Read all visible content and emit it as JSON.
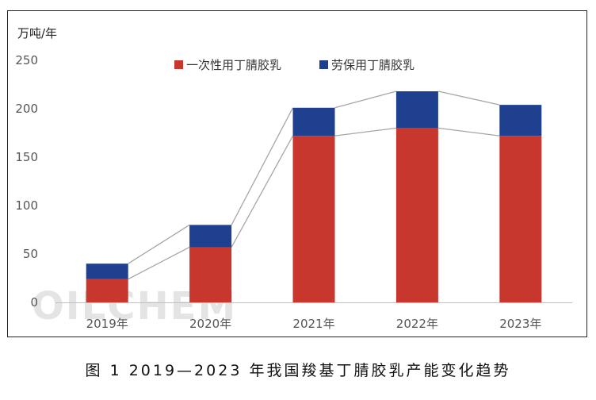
{
  "chart_data": {
    "type": "bar",
    "stacked": true,
    "unit_label": "万吨/年",
    "categories": [
      "2019年",
      "2020年",
      "2021年",
      "2022年",
      "2023年"
    ],
    "series": [
      {
        "name": "一次性用丁腈胶乳",
        "color": "#c8372d",
        "values": [
          24,
          57,
          172,
          180,
          172
        ]
      },
      {
        "name": "劳保用丁腈胶乳",
        "color": "#1f3f8f",
        "values": [
          16,
          23,
          29,
          38,
          32
        ]
      }
    ],
    "ylim": [
      0,
      250
    ],
    "yticks": [
      "0",
      "50",
      "100",
      "150",
      "200",
      "250"
    ],
    "connector_lines": true,
    "legend_position": "top-center",
    "grid": false
  },
  "watermark": "OILCHEM",
  "caption": "图 1  2019—2023 年我国羧基丁腈胶乳产能变化趋势"
}
